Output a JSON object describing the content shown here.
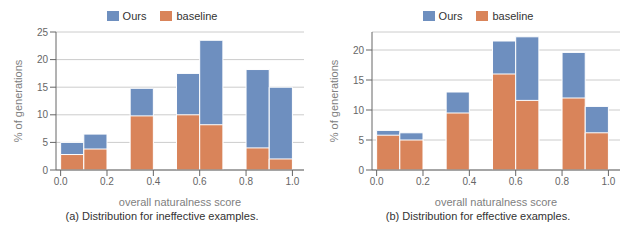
{
  "chart_data": [
    {
      "type": "bar",
      "title": "(a) Distribution for ineffective examples.",
      "x": [
        0.0,
        0.1,
        0.3,
        0.5,
        0.6,
        0.8,
        0.9
      ],
      "bin_width": [
        0.1,
        0.1,
        0.1,
        0.1,
        0.1,
        0.1,
        0.1
      ],
      "series": [
        {
          "name": "Ours",
          "color": "#6e8fbf",
          "values": [
            5.0,
            6.5,
            14.8,
            17.5,
            23.5,
            18.2,
            15.0
          ]
        },
        {
          "name": "baseline",
          "color": "#d9845a",
          "values": [
            2.8,
            3.8,
            9.8,
            10.0,
            8.2,
            4.0,
            2.0
          ]
        }
      ],
      "xlim": [
        -0.02,
        1.05
      ],
      "xticks": [
        {
          "value": 0.0,
          "label": "0.0"
        },
        {
          "value": 0.2,
          "label": "0.2"
        },
        {
          "value": 0.4,
          "label": "0.4"
        },
        {
          "value": 0.6,
          "label": "0.6"
        },
        {
          "value": 0.8,
          "label": "0.8"
        },
        {
          "value": 1.0,
          "label": "1.0"
        }
      ],
      "ylim": [
        0,
        25
      ],
      "yticks": [
        0,
        5,
        10,
        15,
        20,
        25
      ],
      "xlabel": "overall naturalness score",
      "ylabel": "% of generations",
      "grid": true
    },
    {
      "type": "bar",
      "title": "(b) Distribution for effective examples.",
      "x": [
        0.0,
        0.1,
        0.3,
        0.5,
        0.6,
        0.8,
        0.9
      ],
      "bin_width": [
        0.1,
        0.1,
        0.1,
        0.1,
        0.1,
        0.1,
        0.1
      ],
      "series": [
        {
          "name": "Ours",
          "color": "#6e8fbf",
          "values": [
            6.6,
            6.2,
            13.0,
            21.5,
            22.2,
            19.6,
            10.6
          ]
        },
        {
          "name": "baseline",
          "color": "#d9845a",
          "values": [
            5.8,
            5.0,
            9.5,
            16.0,
            11.6,
            12.0,
            6.2
          ]
        }
      ],
      "xlim": [
        -0.02,
        1.05
      ],
      "xticks": [
        {
          "value": 0.0,
          "label": "0.0"
        },
        {
          "value": 0.2,
          "label": "0.2"
        },
        {
          "value": 0.4,
          "label": "0.4"
        },
        {
          "value": 0.6,
          "label": "0.6"
        },
        {
          "value": 0.8,
          "label": "0.8"
        },
        {
          "value": 1.0,
          "label": "1.0"
        }
      ],
      "ylim": [
        0,
        23
      ],
      "yticks": [
        0,
        5,
        10,
        15,
        20
      ],
      "xlabel": "overall naturalness score",
      "ylabel": "% of generations",
      "grid": true
    }
  ]
}
